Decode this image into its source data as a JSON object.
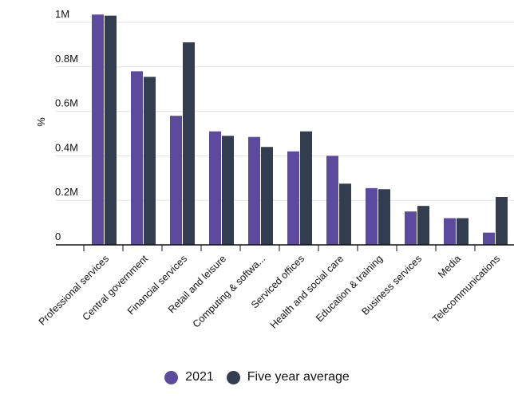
{
  "chart_data": {
    "type": "bar",
    "title": "",
    "xlabel": "",
    "ylabel": "%",
    "ylim": [
      0,
      1000000
    ],
    "y_ticks": [
      {
        "value": 0,
        "label": "0"
      },
      {
        "value": 200000,
        "label": "0.2M"
      },
      {
        "value": 400000,
        "label": "0.4M"
      },
      {
        "value": 600000,
        "label": "0.6M"
      },
      {
        "value": 800000,
        "label": "0.8M"
      },
      {
        "value": 1000000,
        "label": "1M"
      }
    ],
    "grid": true,
    "legend_position": "bottom",
    "categories": [
      "Professional services",
      "Central government",
      "Financial services",
      "Retail and leisure",
      "Computing & softwa...",
      "Serviced offices",
      "Health and social care",
      "Education & training",
      "Business services",
      "Media",
      "Telecommunications"
    ],
    "series": [
      {
        "name": "2021",
        "color": "#5c4a9e",
        "values": [
          1035000,
          780000,
          580000,
          510000,
          485000,
          420000,
          400000,
          255000,
          150000,
          120000,
          55000
        ]
      },
      {
        "name": "Five year average",
        "color": "#323d4f",
        "values": [
          1030000,
          755000,
          910000,
          490000,
          440000,
          510000,
          275000,
          250000,
          175000,
          120000,
          215000
        ]
      }
    ]
  }
}
